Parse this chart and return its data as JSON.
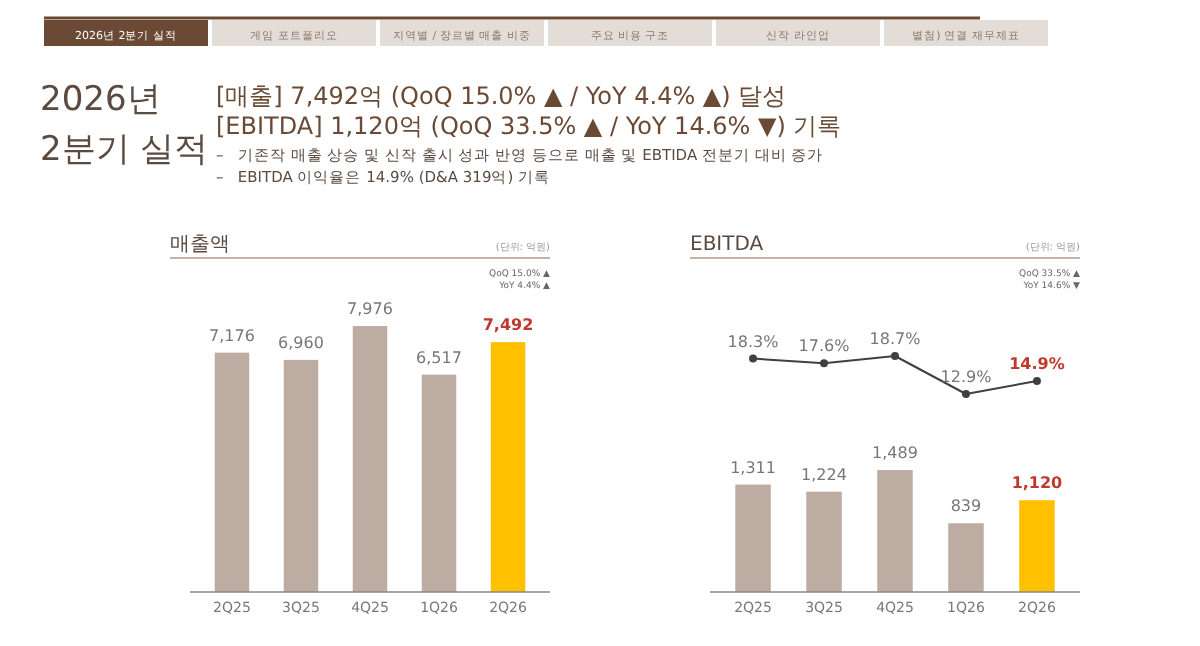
{
  "chart_data": [
    {
      "type": "other",
      "title": "2026년 2분기 실적",
      "annotations": [
        "2026년 2분기 실적",
        "게임 포트폴리오",
        "지역별 / 장르별 매출 비중",
        "주요 비용 구조",
        "신작 라인업",
        "별첨) 연결 재무제표",
        "[매출] 7,492억 (QoQ 15.0% ▲ / YoY 4.4% ▲) 달성",
        "[EBITDA] 1,120억 (QoQ 33.5% ▲ / YoY 14.6% ▼) 기록",
        "–   기존작 매출 상승 및 신작 출시 성과 반영 등으로 매출 및 EBTIDA 전분기 대비 증가",
        "–   EBITDA 이익율은 14.9% (D&A 319억) 기록"
      ]
    },
    {
      "type": "bar",
      "title": "매출액",
      "categories": [
        "2Q25",
        "3Q25",
        "4Q25",
        "1Q26",
        "2Q26"
      ],
      "values": [
        7176,
        6960,
        7976,
        6517,
        7492
      ],
      "value_labels": [
        "7,176",
        "6,960",
        "7,976",
        "6,517",
        "7,492"
      ],
      "colors": [
        "#bcaca2",
        "#bcaca2",
        "#bcaca2",
        "#bcaca2",
        "#ffc000"
      ],
      "annotations": [
        "(단위: 억원)",
        "QoQ 15.0% ▲",
        "YoY 4.4% ▲"
      ]
    },
    {
      "type": "line",
      "title": "EBITDA",
      "annotations": [
        "(단위: 억원)",
        "QoQ 33.5% ▲",
        "YoY 14.6% ▼"
      ],
      "categories": [
        null,
        null,
        null,
        null,
        null
      ],
      "values": [
        18.3,
        17.6,
        18.7,
        12.9,
        14.9
      ],
      "value_labels": [
        "18.3%",
        "17.6%",
        "18.7%",
        "12.9%",
        "14.9%"
      ],
      "colors": [
        "#404040",
        "#404040",
        "#404040",
        "#404040",
        "#c0392b"
      ],
      "color": "#404040",
      "marker": "circle"
    },
    {
      "type": "bar",
      "categories": [
        "2Q25",
        "3Q25",
        "4Q25",
        "1Q26",
        "2Q26"
      ],
      "values": [
        1311,
        1224,
        1489,
        839,
        1120
      ],
      "value_labels": [
        "1,311",
        "1,224",
        "1,489",
        "839",
        "1,120"
      ],
      "colors": [
        "#bcaca2",
        "#bcaca2",
        "#bcaca2",
        "#bcaca2",
        "#ffc000"
      ]
    }
  ]
}
